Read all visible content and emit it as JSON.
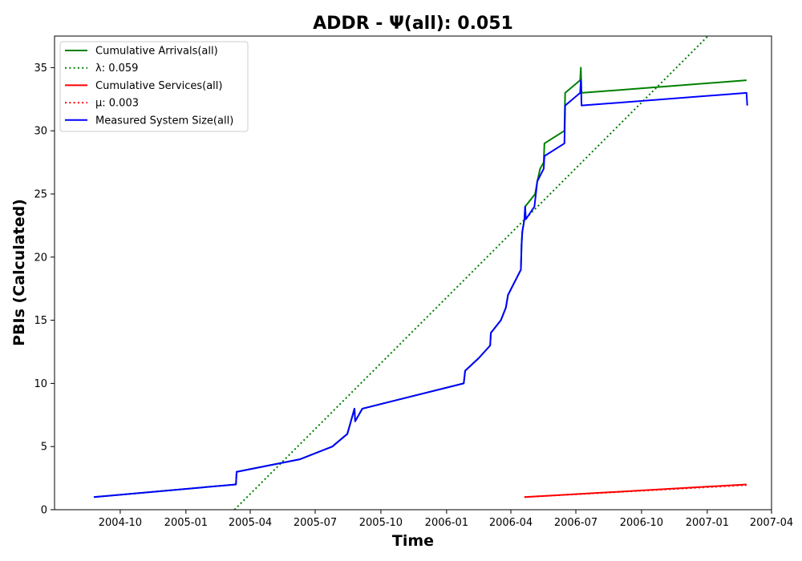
{
  "chart_data": {
    "type": "line",
    "title": "ADDR -  Ψ(all): 0.051",
    "xlabel": "Time",
    "ylabel": "PBIs (Calculated)",
    "xlim": [
      "2004-07-01",
      "2007-04-01"
    ],
    "ylim": [
      0,
      37.5
    ],
    "xticks": [
      "2004-10",
      "2005-01",
      "2005-04",
      "2005-07",
      "2005-10",
      "2006-01",
      "2006-04",
      "2006-07",
      "2006-10",
      "2007-01",
      "2007-04"
    ],
    "yticks": [
      0,
      5,
      10,
      15,
      20,
      25,
      30,
      35
    ],
    "grid": false,
    "legend_position": "top-left",
    "series": [
      {
        "name": "Cumulative Arrivals(all)",
        "color": "#008000",
        "style": "solid",
        "points": [
          [
            "2004-08-25",
            1
          ],
          [
            "2005-03-12",
            2
          ],
          [
            "2005-03-13",
            3
          ],
          [
            "2005-06-10",
            4
          ],
          [
            "2005-07-25",
            5
          ],
          [
            "2005-08-15",
            6
          ],
          [
            "2005-08-20",
            7
          ],
          [
            "2005-08-25",
            8
          ],
          [
            "2005-08-26",
            7
          ],
          [
            "2005-09-05",
            8
          ],
          [
            "2006-01-25",
            10
          ],
          [
            "2006-01-27",
            11
          ],
          [
            "2006-02-15",
            12
          ],
          [
            "2006-03-03",
            13
          ],
          [
            "2006-03-04",
            14
          ],
          [
            "2006-03-18",
            15
          ],
          [
            "2006-03-25",
            16
          ],
          [
            "2006-03-28",
            17
          ],
          [
            "2006-04-15",
            19
          ],
          [
            "2006-04-16",
            21
          ],
          [
            "2006-04-17",
            22
          ],
          [
            "2006-04-20",
            23
          ],
          [
            "2006-04-21",
            24
          ],
          [
            "2006-05-05",
            25
          ],
          [
            "2006-05-08",
            26
          ],
          [
            "2006-05-12",
            27
          ],
          [
            "2006-05-17",
            27.5
          ],
          [
            "2006-05-18",
            29
          ],
          [
            "2006-06-15",
            30
          ],
          [
            "2006-06-16",
            33
          ],
          [
            "2006-07-07",
            34
          ],
          [
            "2006-07-08",
            35
          ],
          [
            "2006-07-09",
            33
          ],
          [
            "2007-02-25",
            34
          ]
        ]
      },
      {
        "name": "λ: 0.059",
        "color": "#008000",
        "style": "dotted",
        "points": [
          [
            "2005-03-10",
            0
          ],
          [
            "2007-01-02",
            37.5
          ]
        ]
      },
      {
        "name": "Cumulative Services(all)",
        "color": "#ff0000",
        "style": "solid",
        "points": [
          [
            "2006-04-20",
            1
          ],
          [
            "2007-02-25",
            2
          ]
        ]
      },
      {
        "name": "μ: 0.003",
        "color": "#ff0000",
        "style": "dotted",
        "points": [
          [
            "2006-04-20",
            1
          ],
          [
            "2007-02-25",
            1.95
          ]
        ]
      },
      {
        "name": "Measured System Size(all)",
        "color": "#0000ff",
        "style": "solid",
        "points": [
          [
            "2004-08-25",
            1
          ],
          [
            "2005-03-12",
            2
          ],
          [
            "2005-03-13",
            3
          ],
          [
            "2005-06-10",
            4
          ],
          [
            "2005-07-25",
            5
          ],
          [
            "2005-08-15",
            6
          ],
          [
            "2005-08-20",
            7
          ],
          [
            "2005-08-25",
            8
          ],
          [
            "2005-08-26",
            7
          ],
          [
            "2005-09-05",
            8
          ],
          [
            "2006-01-25",
            10
          ],
          [
            "2006-01-27",
            11
          ],
          [
            "2006-02-15",
            12
          ],
          [
            "2006-03-03",
            13
          ],
          [
            "2006-03-04",
            14
          ],
          [
            "2006-03-18",
            15
          ],
          [
            "2006-03-25",
            16
          ],
          [
            "2006-03-28",
            17
          ],
          [
            "2006-04-15",
            19
          ],
          [
            "2006-04-16",
            21
          ],
          [
            "2006-04-17",
            22
          ],
          [
            "2006-04-20",
            23
          ],
          [
            "2006-04-21",
            24
          ],
          [
            "2006-04-22",
            23
          ],
          [
            "2006-05-04",
            24
          ],
          [
            "2006-05-08",
            26
          ],
          [
            "2006-05-17",
            27
          ],
          [
            "2006-05-18",
            28
          ],
          [
            "2006-06-15",
            29
          ],
          [
            "2006-06-16",
            32
          ],
          [
            "2006-07-07",
            33
          ],
          [
            "2006-07-08",
            34
          ],
          [
            "2006-07-09",
            32
          ],
          [
            "2007-02-25",
            33
          ],
          [
            "2007-02-26",
            32
          ]
        ]
      }
    ]
  }
}
